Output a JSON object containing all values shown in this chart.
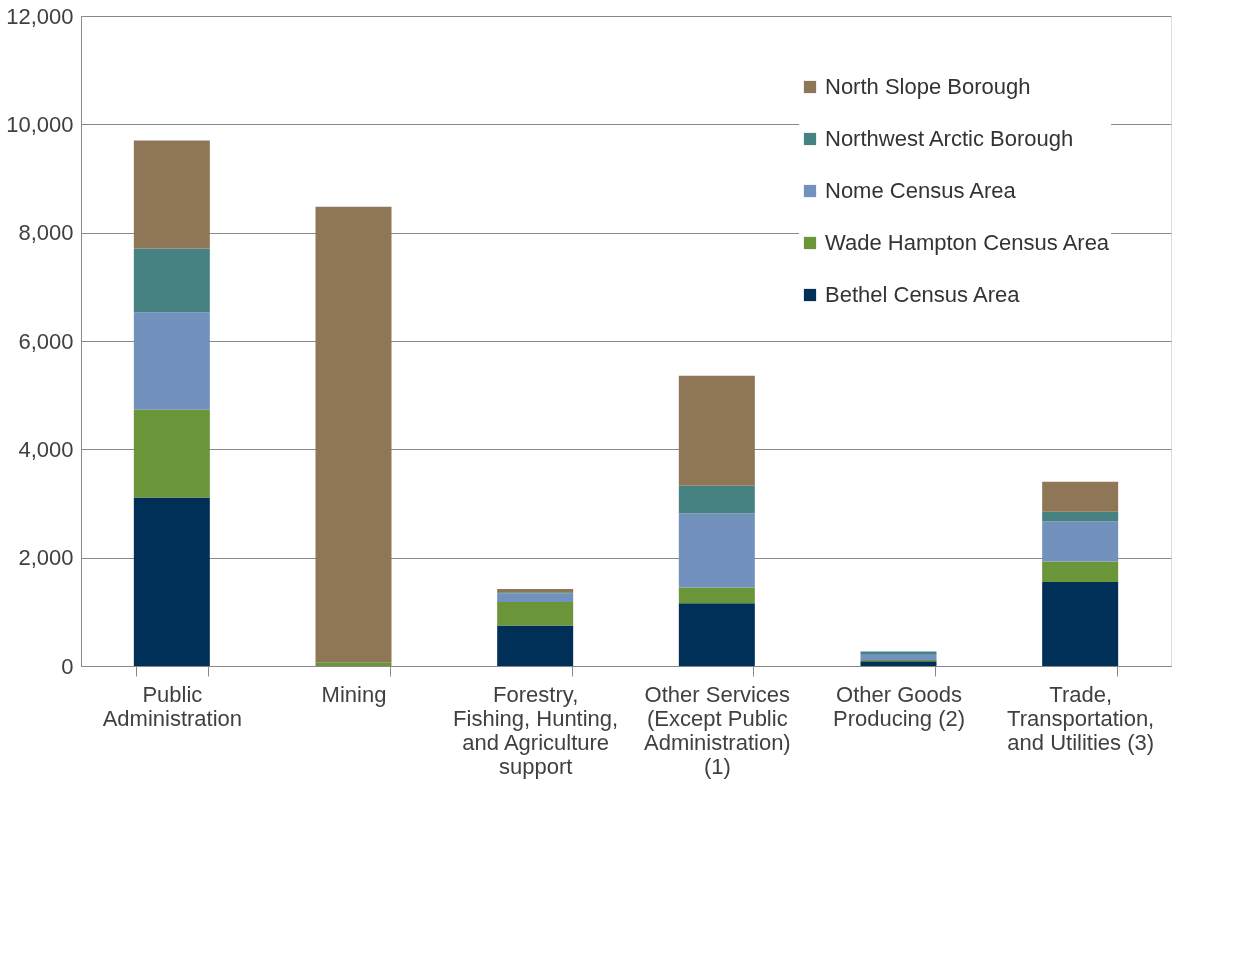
{
  "chart_data": {
    "type": "bar",
    "stacked": true,
    "categories": [
      "Public Administration",
      "Mining",
      "Forestry, Fishing, Hunting, and Agriculture support",
      "Other Services (Except Public Administration) (1)",
      "Other Goods Producing (2)",
      "Trade, Transportation, and Utilities (3)"
    ],
    "series": [
      {
        "name": "Bethel Census Area",
        "color": "#003057",
        "values": [
          3110,
          0,
          750,
          1160,
          90,
          1550
        ]
      },
      {
        "name": "Wade Hampton Census Area",
        "color": "#6a9539",
        "values": [
          1620,
          70,
          430,
          290,
          20,
          380
        ]
      },
      {
        "name": "Nome Census Area",
        "color": "#7292bd",
        "values": [
          1800,
          0,
          160,
          1370,
          110,
          740
        ]
      },
      {
        "name": "Northwest Arctic Borough",
        "color": "#468282",
        "values": [
          1180,
          0,
          20,
          510,
          50,
          180
        ]
      },
      {
        "name": "North Slope Borough",
        "color": "#8f7656",
        "values": [
          1990,
          8410,
          60,
          2030,
          null,
          550
        ]
      }
    ],
    "ylim": [
      0,
      12000
    ],
    "yticks": [
      {
        "value": 0,
        "label": "0"
      },
      {
        "value": 2000,
        "label": "2,000"
      },
      {
        "value": 4000,
        "label": "4,000"
      },
      {
        "value": 6000,
        "label": "6,000"
      },
      {
        "value": 8000,
        "label": "8,000"
      },
      {
        "value": 10000,
        "label": "10,000"
      },
      {
        "value": 12000,
        "label": "12,000"
      }
    ],
    "grid": "y",
    "legend": "top right"
  }
}
